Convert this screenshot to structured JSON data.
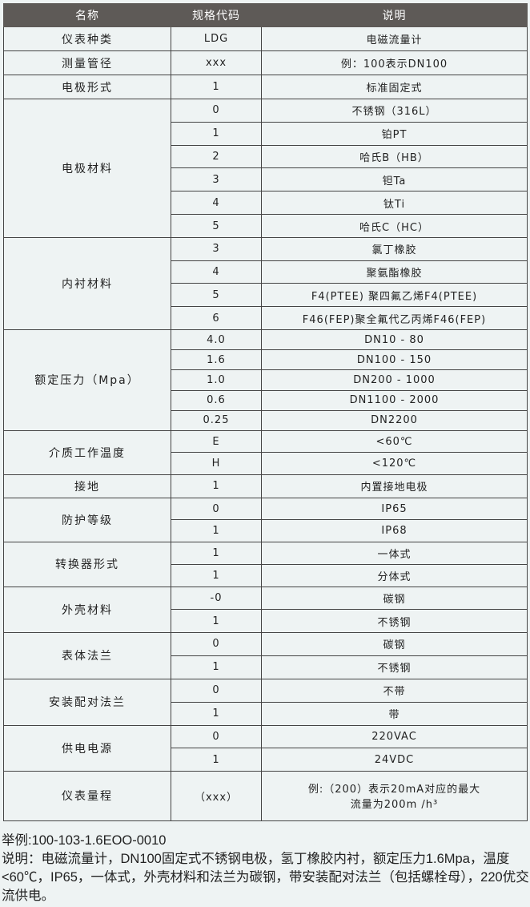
{
  "header": {
    "name": "名称",
    "code": "规格代码",
    "desc": "说明"
  },
  "groups": [
    {
      "name": "仪表种类",
      "rows": [
        [
          "LDG",
          "电磁流量计"
        ]
      ]
    },
    {
      "name": "测量管径",
      "rows": [
        [
          "xxx",
          "例：100表示DN100"
        ]
      ]
    },
    {
      "name": "电极形式",
      "rows": [
        [
          "1",
          "标准固定式"
        ]
      ]
    },
    {
      "name": "电极材料",
      "rows": [
        [
          "0",
          "不锈钢（316L）"
        ],
        [
          "1",
          "铂PT"
        ],
        [
          "2",
          "哈氏B（HB）"
        ],
        [
          "3",
          "钽Ta"
        ],
        [
          "4",
          "钛Ti"
        ],
        [
          "5",
          "哈氏C（HC）"
        ]
      ]
    },
    {
      "name": "内衬材料",
      "rows": [
        [
          "3",
          "氯丁橡胶"
        ],
        [
          "4",
          "聚氨酯橡胶"
        ],
        [
          "5",
          "F4(PTEE) 聚四氟乙烯F4(PTEE)"
        ],
        [
          "6",
          "F46(FEP)聚全氟代乙丙烯F46(FEP)"
        ]
      ]
    },
    {
      "name": "额定压力（Mpa）",
      "rows": [
        [
          "4.0",
          "DN10 - 80"
        ],
        [
          "1.6",
          "DN100 - 150"
        ],
        [
          "1.0",
          "DN200 - 1000"
        ],
        [
          "0.6",
          "DN1100 - 2000"
        ],
        [
          "0.25",
          "DN2200"
        ]
      ]
    },
    {
      "name": "介质工作温度",
      "rows": [
        [
          "E",
          "<60℃"
        ],
        [
          "H",
          "<120℃"
        ]
      ]
    },
    {
      "name": "接地",
      "rows": [
        [
          "1",
          "内置接地电极"
        ]
      ]
    },
    {
      "name": "防护等级",
      "rows": [
        [
          "0",
          "IP65"
        ],
        [
          "1",
          "IP68"
        ]
      ]
    },
    {
      "name": "转换器形式",
      "rows": [
        [
          "1",
          "一体式"
        ],
        [
          "1",
          "分体式"
        ]
      ]
    },
    {
      "name": "外壳材料",
      "rows": [
        [
          "-0",
          "碳钢"
        ],
        [
          "1",
          "不锈钢"
        ]
      ]
    },
    {
      "name": "表体法兰",
      "rows": [
        [
          "0",
          "碳钢"
        ],
        [
          "1",
          "不锈钢"
        ]
      ]
    },
    {
      "name": "安装配对法兰",
      "rows": [
        [
          "0",
          "不带"
        ],
        [
          "1",
          "带"
        ]
      ]
    },
    {
      "name": "供电电源",
      "rows": [
        [
          "0",
          "220VAC"
        ],
        [
          "1",
          "24VDC"
        ]
      ]
    },
    {
      "name": "仪表量程",
      "rows": [
        [
          "（xxx）",
          "例:（200）表示20mA对应的最大\n流量为200m /h³"
        ]
      ]
    }
  ],
  "example": {
    "code_line": "举例:100-103-1.6EOO-0010",
    "desc_line": "说明：电磁流量计，DN100固定式不锈钢电极，氢丁橡胶内衬，额定压力1.6Mpa，温度<60℃，IP65，一体式，外壳材料和法兰为碳钢，带安装配对法兰（包括螺栓母），220优交流供电。"
  }
}
